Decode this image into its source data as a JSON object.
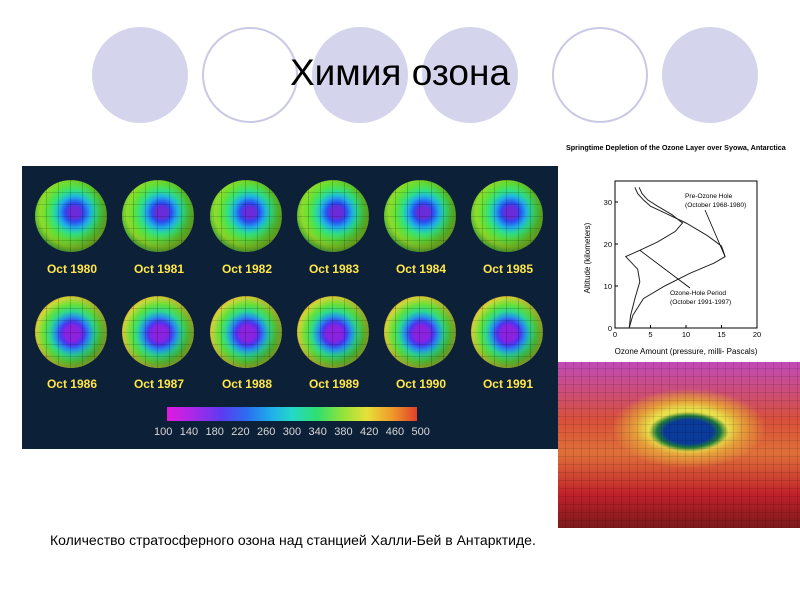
{
  "slide": {
    "title": "Химия озона",
    "caption": "Количество стратосферного озона над станцией Халли-Бей в Антарктиде."
  },
  "maps": {
    "labels": [
      "Oct 1980",
      "Oct 1981",
      "Oct 1982",
      "Oct 1983",
      "Oct 1984",
      "Oct 1985",
      "Oct 1986",
      "Oct 1987",
      "Oct 1988",
      "Oct 1989",
      "Oct 1990",
      "Oct 1991"
    ],
    "colorbar_ticks": [
      "100",
      "140",
      "180",
      "220",
      "260",
      "300",
      "340",
      "380",
      "420",
      "460",
      "500"
    ]
  },
  "chart_data": {
    "type": "line",
    "title": "Springtime Depletion of the Ozone Layer over Syowa, Antarctica",
    "xlabel": "Ozone Amount (pressure, milli- Pascals)",
    "ylabel": "Altitude (kilometers)",
    "xlim": [
      0,
      20
    ],
    "ylim": [
      0,
      35
    ],
    "xticks": [
      "0",
      "5",
      "10",
      "15",
      "20"
    ],
    "yticks": [
      "0",
      "10",
      "20",
      "30"
    ],
    "series": [
      {
        "name": "Pre-Ozone Hole (October 1968-1980)",
        "points": [
          [
            2,
            0
          ],
          [
            2.5,
            3
          ],
          [
            4,
            7
          ],
          [
            7,
            10
          ],
          [
            10.5,
            13
          ],
          [
            14,
            15.5
          ],
          [
            15.5,
            17
          ],
          [
            15,
            19.5
          ],
          [
            13,
            22
          ],
          [
            10,
            25
          ],
          [
            7.5,
            27
          ],
          [
            5,
            29
          ],
          [
            4,
            30.5
          ],
          [
            3.2,
            32
          ],
          [
            2.8,
            33.5
          ]
        ]
      },
      {
        "name": "Ozone-Hole Period (October 1991-1997)",
        "points": [
          [
            2,
            0
          ],
          [
            2.2,
            3
          ],
          [
            2.8,
            7
          ],
          [
            3.5,
            11
          ],
          [
            3.2,
            14
          ],
          [
            1.5,
            17
          ],
          [
            3.5,
            18.5
          ],
          [
            6,
            20.5
          ],
          [
            8.5,
            23
          ],
          [
            9.5,
            25
          ],
          [
            8,
            27
          ],
          [
            6,
            29
          ],
          [
            4.6,
            30.5
          ],
          [
            3.8,
            32
          ],
          [
            3.4,
            33.5
          ]
        ]
      }
    ]
  }
}
